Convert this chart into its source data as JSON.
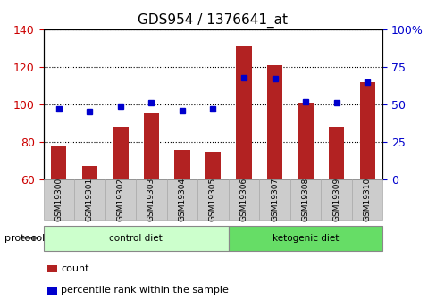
{
  "title": "GDS954 / 1376641_at",
  "samples": [
    "GSM19300",
    "GSM19301",
    "GSM19302",
    "GSM19303",
    "GSM19304",
    "GSM19305",
    "GSM19306",
    "GSM19307",
    "GSM19308",
    "GSM19309",
    "GSM19310"
  ],
  "counts": [
    78,
    67,
    88,
    95,
    76,
    75,
    131,
    121,
    101,
    88,
    112
  ],
  "percentile_ranks": [
    47,
    45,
    49,
    51,
    46,
    47,
    68,
    67,
    52,
    51,
    65
  ],
  "groups": [
    "control diet",
    "control diet",
    "control diet",
    "control diet",
    "control diet",
    "control diet",
    "ketogenic diet",
    "ketogenic diet",
    "ketogenic diet",
    "ketogenic diet",
    "ketogenic diet"
  ],
  "bar_color": "#b22222",
  "dot_color": "#0000cd",
  "left_ylim": [
    60,
    140
  ],
  "right_ylim": [
    0,
    100
  ],
  "left_yticks": [
    60,
    80,
    100,
    120,
    140
  ],
  "right_yticks": [
    0,
    25,
    50,
    75,
    100
  ],
  "right_yticklabels": [
    "0",
    "25",
    "50",
    "75",
    "100%"
  ],
  "left_ylabel_color": "#cc0000",
  "right_ylabel_color": "#0000cd",
  "group_colors": {
    "control diet": "#ccffcc",
    "ketogenic diet": "#66dd66"
  },
  "group_label_color": "#000000",
  "protocol_label": "protocol",
  "legend_count_label": "count",
  "legend_percentile_label": "percentile rank within the sample",
  "background_color": "#ffffff",
  "plot_bg_color": "#ffffff",
  "grid_color": "#000000",
  "tick_label_bg": "#cccccc"
}
